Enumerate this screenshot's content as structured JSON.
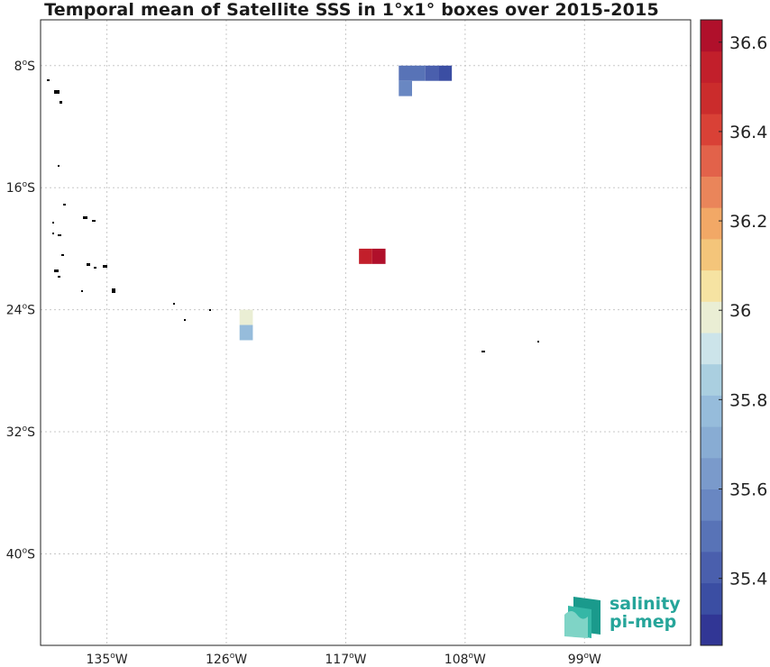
{
  "title": "Temporal mean of Satellite SSS in 1°x1° boxes over 2015-2015",
  "map": {
    "lon_range": [
      -140,
      -91
    ],
    "lat_range": [
      -46,
      -5
    ],
    "lat_ticks": [
      {
        "lat": -8,
        "deg": "8",
        "hemi": "S"
      },
      {
        "lat": -16,
        "deg": "16",
        "hemi": "S"
      },
      {
        "lat": -24,
        "deg": "24",
        "hemi": "S"
      },
      {
        "lat": -32,
        "deg": "32",
        "hemi": "S"
      },
      {
        "lat": -40,
        "deg": "40",
        "hemi": "S"
      }
    ],
    "lon_ticks": [
      {
        "lon": -135,
        "deg": "135",
        "hemi": "W"
      },
      {
        "lon": -126,
        "deg": "126",
        "hemi": "W"
      },
      {
        "lon": -117,
        "deg": "117",
        "hemi": "W"
      },
      {
        "lon": -108,
        "deg": "108",
        "hemi": "W"
      },
      {
        "lon": -99,
        "deg": "99",
        "hemi": "W"
      }
    ],
    "grid": true
  },
  "chart_data": {
    "type": "heatmap",
    "variable": "Satellite SSS",
    "cell_size_deg": 1,
    "color_range": [
      35.25,
      36.65
    ],
    "cells": [
      {
        "lon": -112.5,
        "lat": -8.5,
        "value": 35.49
      },
      {
        "lon": -111.5,
        "lat": -8.5,
        "value": 35.46
      },
      {
        "lon": -110.5,
        "lat": -8.5,
        "value": 35.42
      },
      {
        "lon": -109.5,
        "lat": -8.5,
        "value": 35.36
      },
      {
        "lon": -112.5,
        "lat": -9.5,
        "value": 35.58
      },
      {
        "lon": -115.5,
        "lat": -20.5,
        "value": 36.55
      },
      {
        "lon": -114.5,
        "lat": -20.5,
        "value": 36.6
      },
      {
        "lon": -124.5,
        "lat": -24.5,
        "value": 35.98
      },
      {
        "lon": -124.5,
        "lat": -25.5,
        "value": 35.76
      }
    ]
  },
  "colorbar": {
    "levels": 20,
    "range": [
      35.25,
      36.65
    ],
    "colors": [
      "#313695",
      "#3b4ea3",
      "#4a5fad",
      "#5873b7",
      "#6987c2",
      "#7a9acb",
      "#88acd3",
      "#96bcdb",
      "#aacfe0",
      "#cce4ea",
      "#eaeed4",
      "#f6e3a2",
      "#f4c57a",
      "#f2a866",
      "#ea855a",
      "#e2624a",
      "#d94136",
      "#cb2c2c",
      "#c21f2b",
      "#b0102b"
    ],
    "tick_values": [
      35.4,
      35.6,
      35.8,
      36,
      36.2,
      36.4,
      36.6
    ],
    "tick_labels": [
      "35.4",
      "35.6",
      "35.8",
      "36",
      "36.2",
      "36.4",
      "36.6"
    ]
  },
  "logo": {
    "line1": "salinity",
    "line2": "pi-mep",
    "color": "#26a59a"
  },
  "land": {
    "color": "#000000"
  }
}
